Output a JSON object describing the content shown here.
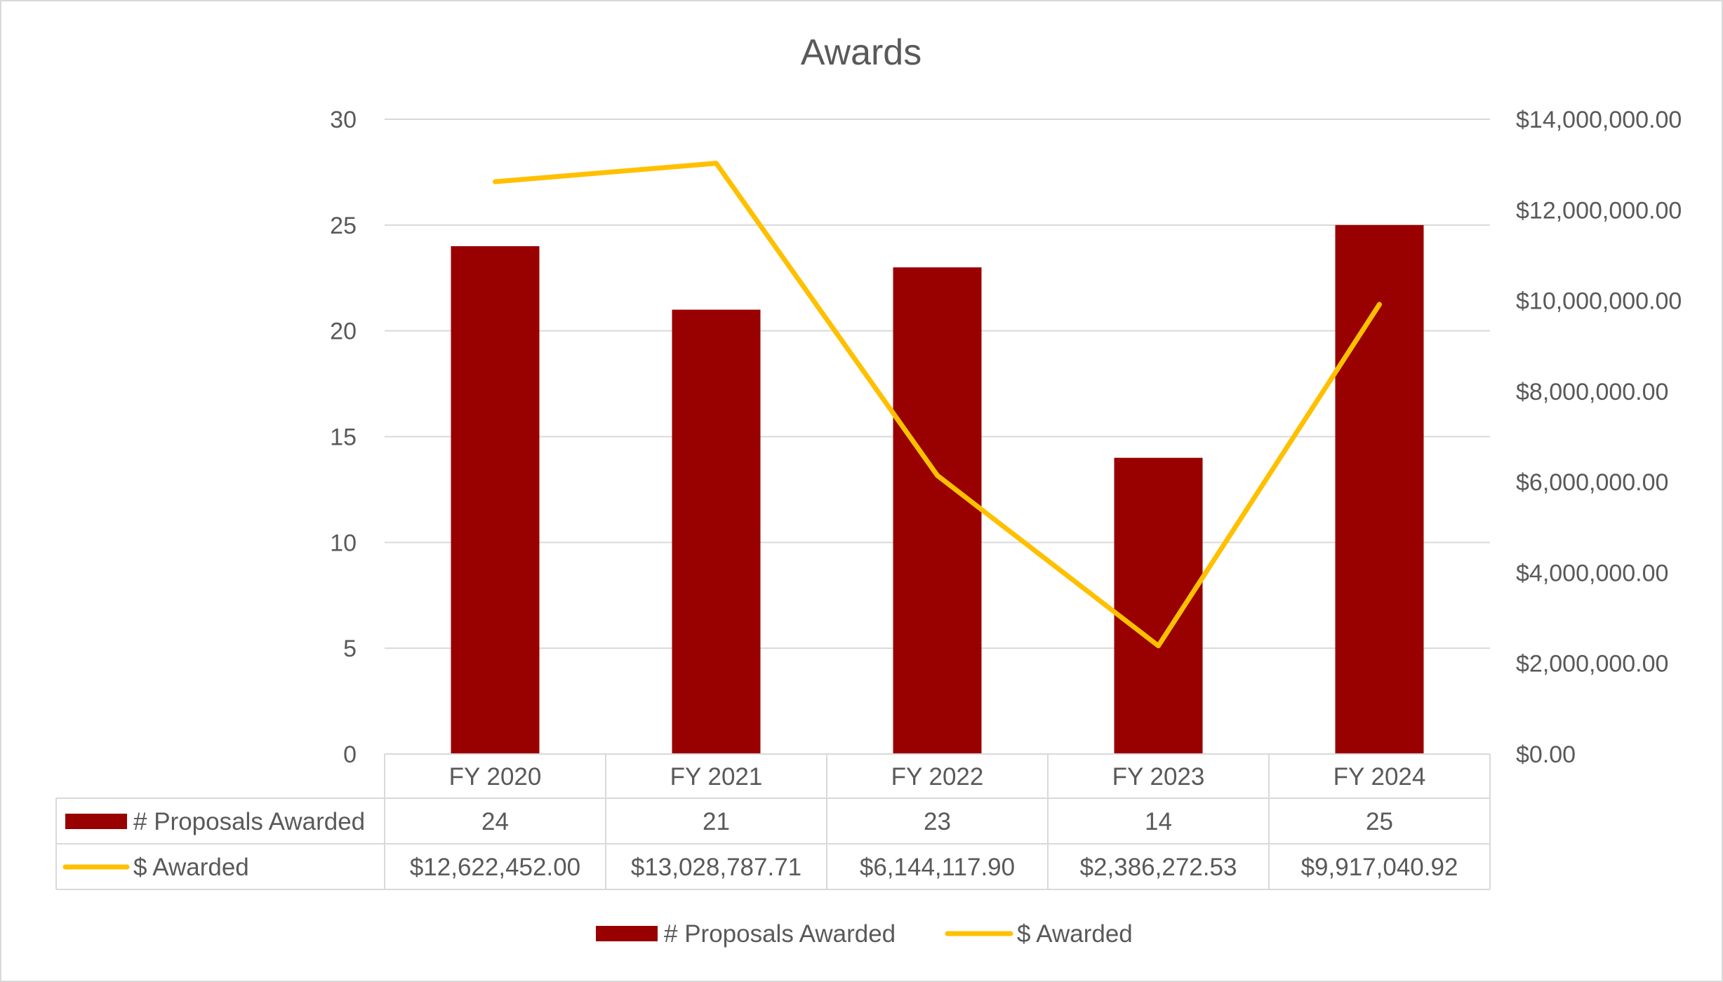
{
  "chart_data": {
    "type": "bar",
    "title": "Awards",
    "categories": [
      "FY 2020",
      "FY 2021",
      "FY 2022",
      "FY 2023",
      "FY 2024"
    ],
    "series": [
      {
        "name": "# Proposals Awarded",
        "type": "bar",
        "axis": "left",
        "color": "#990000",
        "values": [
          24,
          21,
          23,
          14,
          25
        ],
        "table_labels": [
          "24",
          "21",
          "23",
          "14",
          "25"
        ]
      },
      {
        "name": "$ Awarded",
        "type": "line",
        "axis": "right",
        "color": "#FFC000",
        "values": [
          12622452.0,
          13028787.71,
          6144117.9,
          2386272.53,
          9917040.92
        ],
        "table_labels": [
          "$12,622,452.00",
          "$13,028,787.71",
          "$6,144,117.90",
          "$2,386,272.53",
          "$9,917,040.92"
        ]
      }
    ],
    "y_left": {
      "range": [
        0,
        30
      ],
      "ticks": [
        0,
        5,
        10,
        15,
        20,
        25,
        30
      ],
      "tick_labels": [
        "0",
        "5",
        "10",
        "15",
        "20",
        "25",
        "30"
      ]
    },
    "y_right": {
      "range": [
        0,
        14000000
      ],
      "ticks": [
        0,
        2000000,
        4000000,
        6000000,
        8000000,
        10000000,
        12000000,
        14000000
      ],
      "tick_labels": [
        "$0.00",
        "$2,000,000.00",
        "$4,000,000.00",
        "$6,000,000.00",
        "$8,000,000.00",
        "$10,000,000.00",
        "$12,000,000.00",
        "$14,000,000.00"
      ]
    },
    "grid": true,
    "data_table": true,
    "legend": "bottom"
  }
}
